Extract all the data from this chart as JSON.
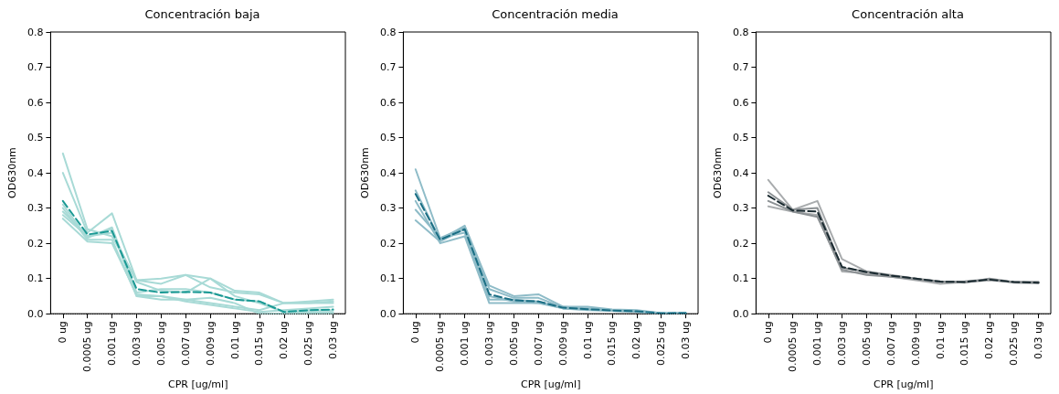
{
  "chart_data": [
    {
      "type": "line",
      "title": "Concentración baja",
      "xlabel": "CPR [ug/ml]",
      "ylabel": "OD630nm",
      "categories": [
        "0 ug",
        "0.0005 ug",
        "0.001 ug",
        "0.003 ug",
        "0.005 ug",
        "0.007 ug",
        "0.009 ug",
        "0.01 ug",
        "0.015 ug",
        "0.02 ug",
        "0.025 ug",
        "0.03 ug"
      ],
      "ylim": [
        0,
        0.8
      ],
      "yticks": [
        {
          "value": 0,
          "label": "0.0"
        },
        {
          "value": 0.1,
          "label": "0.1"
        },
        {
          "value": 0.2,
          "label": "0.2"
        },
        {
          "value": 0.3,
          "label": "0.3"
        },
        {
          "value": 0.4,
          "label": "0.4"
        },
        {
          "value": 0.5,
          "label": "0.5"
        },
        {
          "value": 0.6,
          "label": "0.6"
        },
        {
          "value": 0.7,
          "label": "0.7"
        },
        {
          "value": 0.8,
          "label": "0.8"
        }
      ],
      "grid": false,
      "marker": "none",
      "line_style": "solid",
      "ref_lines": [
        {
          "axis": "y",
          "value": 0,
          "color": "#000000",
          "line_style": "dotted"
        }
      ],
      "series": [
        {
          "color": "#a8dad6",
          "values": [
            0.455,
            0.24,
            0.22,
            0.095,
            0.1,
            0.11,
            0.1,
            0.065,
            0.06,
            0.03,
            0.03,
            0.035
          ]
        },
        {
          "color": "#a8dad6",
          "values": [
            0.4,
            0.23,
            0.285,
            0.095,
            0.085,
            0.11,
            0.075,
            0.06,
            0.055,
            0.03,
            0.035,
            0.04
          ]
        },
        {
          "color": "#a8dad6",
          "values": [
            0.3,
            0.21,
            0.21,
            0.05,
            0.04,
            0.04,
            0.03,
            0.02,
            0.01,
            0.03,
            0.03,
            0.03
          ]
        },
        {
          "color": "#a8dad6",
          "values": [
            0.29,
            0.22,
            0.24,
            0.05,
            0.05,
            0.035,
            0.025,
            0.015,
            0.005,
            0.01,
            0.015,
            0.02
          ]
        },
        {
          "color": "#a8dad6",
          "values": [
            0.28,
            0.22,
            0.23,
            0.09,
            0.065,
            0.06,
            0.1,
            0.05,
            0.03,
            0.005,
            0.01,
            0.01
          ]
        },
        {
          "color": "#a8dad6",
          "values": [
            0.27,
            0.205,
            0.2,
            0.055,
            0.05,
            0.04,
            0.045,
            0.03,
            0,
            0,
            0,
            0
          ]
        },
        {
          "color": "#a8dad6",
          "values": [
            0.31,
            0.215,
            0.245,
            0.06,
            0.07,
            0.07,
            0.06,
            0.04,
            0.035,
            0.005,
            0.005,
            0.005
          ]
        },
        {
          "color": "#1a9994",
          "line_style": "dashed",
          "values": [
            0.32,
            0.225,
            0.235,
            0.07,
            0.06,
            0.062,
            0.06,
            0.04,
            0.035,
            0.005,
            0.01,
            0.012
          ]
        }
      ]
    },
    {
      "type": "line",
      "title": "Concentración media",
      "xlabel": "CPR [ug/ml]",
      "ylabel": "OD630nm",
      "categories": [
        "0 ug",
        "0.0005 ug",
        "0.001 ug",
        "0.003 ug",
        "0.005 ug",
        "0.007 ug",
        "0.009 ug",
        "0.01 ug",
        "0.015 ug",
        "0.02 ug",
        "0.025 ug",
        "0.03 ug"
      ],
      "ylim": [
        0,
        0.8
      ],
      "yticks": [
        {
          "value": 0,
          "label": "0.0"
        },
        {
          "value": 0.1,
          "label": "0.1"
        },
        {
          "value": 0.2,
          "label": "0.2"
        },
        {
          "value": 0.3,
          "label": "0.3"
        },
        {
          "value": 0.4,
          "label": "0.4"
        },
        {
          "value": 0.5,
          "label": "0.5"
        },
        {
          "value": 0.6,
          "label": "0.6"
        },
        {
          "value": 0.7,
          "label": "0.7"
        },
        {
          "value": 0.8,
          "label": "0.8"
        }
      ],
      "grid": false,
      "marker": "none",
      "line_style": "solid",
      "ref_lines": [
        {
          "axis": "y",
          "value": 0,
          "color": "#000000",
          "line_style": "dotted"
        }
      ],
      "series": [
        {
          "color": "#8fbcc8",
          "values": [
            0.41,
            0.215,
            0.245,
            0.07,
            0.045,
            0.045,
            0.018,
            0.015,
            0.01,
            0.008,
            0.002,
            0.002
          ]
        },
        {
          "color": "#8fbcc8",
          "values": [
            0.35,
            0.21,
            0.25,
            0.08,
            0.05,
            0.055,
            0.02,
            0.02,
            0.012,
            0.01,
            0.002,
            0.002
          ]
        },
        {
          "color": "#8fbcc8",
          "values": [
            0.32,
            0.2,
            0.22,
            0.03,
            0.03,
            0.03,
            0.015,
            0.01,
            0.008,
            0.005,
            0,
            0.001
          ]
        },
        {
          "color": "#8fbcc8",
          "values": [
            0.295,
            0.215,
            0.23,
            0.04,
            0.04,
            0.035,
            0.015,
            0.012,
            0.008,
            0.006,
            0.001,
            0.001
          ]
        },
        {
          "color": "#8fbcc8",
          "values": [
            0.265,
            0.205,
            0.24,
            0.05,
            0.035,
            0.03,
            0.02,
            0.015,
            0.01,
            0.008,
            0.001,
            0.002
          ]
        },
        {
          "color": "#1a6e84",
          "line_style": "dashed",
          "values": [
            0.34,
            0.21,
            0.24,
            0.055,
            0.038,
            0.035,
            0.017,
            0.013,
            0.009,
            0.007,
            0.001,
            0.002
          ]
        }
      ]
    },
    {
      "type": "line",
      "title": "Concentración alta",
      "xlabel": "CPR [ug/ml]",
      "ylabel": "OD630nm",
      "categories": [
        "0 ug",
        "0.0005 ug",
        "0.001 ug",
        "0.003 ug",
        "0.005 ug",
        "0.007 ug",
        "0.009 ug",
        "0.01 ug",
        "0.015 ug",
        "0.02 ug",
        "0.025 ug",
        "0.03 ug"
      ],
      "ylim": [
        0,
        0.8
      ],
      "yticks": [
        {
          "value": 0,
          "label": "0.0"
        },
        {
          "value": 0.1,
          "label": "0.1"
        },
        {
          "value": 0.2,
          "label": "0.2"
        },
        {
          "value": 0.3,
          "label": "0.3"
        },
        {
          "value": 0.4,
          "label": "0.4"
        },
        {
          "value": 0.5,
          "label": "0.5"
        },
        {
          "value": 0.6,
          "label": "0.6"
        },
        {
          "value": 0.7,
          "label": "0.7"
        },
        {
          "value": 0.8,
          "label": "0.8"
        }
      ],
      "grid": false,
      "marker": "none",
      "line_style": "solid",
      "ref_lines": [
        {
          "axis": "y",
          "value": 0,
          "color": "#000000",
          "line_style": "dotted"
        }
      ],
      "series": [
        {
          "color": "#a9acae",
          "values": [
            0.38,
            0.295,
            0.32,
            0.155,
            0.12,
            0.11,
            0.1,
            0.09,
            0.09,
            0.095,
            0.09,
            0.09
          ]
        },
        {
          "color": "#a9acae",
          "values": [
            0.305,
            0.29,
            0.28,
            0.12,
            0.115,
            0.105,
            0.095,
            0.085,
            0.09,
            0.095,
            0.09,
            0.088
          ]
        },
        {
          "color": "#8c9194",
          "values": [
            0.345,
            0.295,
            0.3,
            0.13,
            0.12,
            0.108,
            0.1,
            0.092,
            0.088,
            0.1,
            0.09,
            0.09
          ]
        },
        {
          "color": "#8c9194",
          "values": [
            0.32,
            0.29,
            0.275,
            0.125,
            0.11,
            0.105,
            0.098,
            0.09,
            0.092,
            0.098,
            0.088,
            0.087
          ]
        },
        {
          "color": "#1a2a30",
          "line_style": "dashed",
          "values": [
            0.335,
            0.293,
            0.29,
            0.133,
            0.118,
            0.108,
            0.1,
            0.091,
            0.09,
            0.097,
            0.09,
            0.088
          ]
        }
      ]
    }
  ]
}
